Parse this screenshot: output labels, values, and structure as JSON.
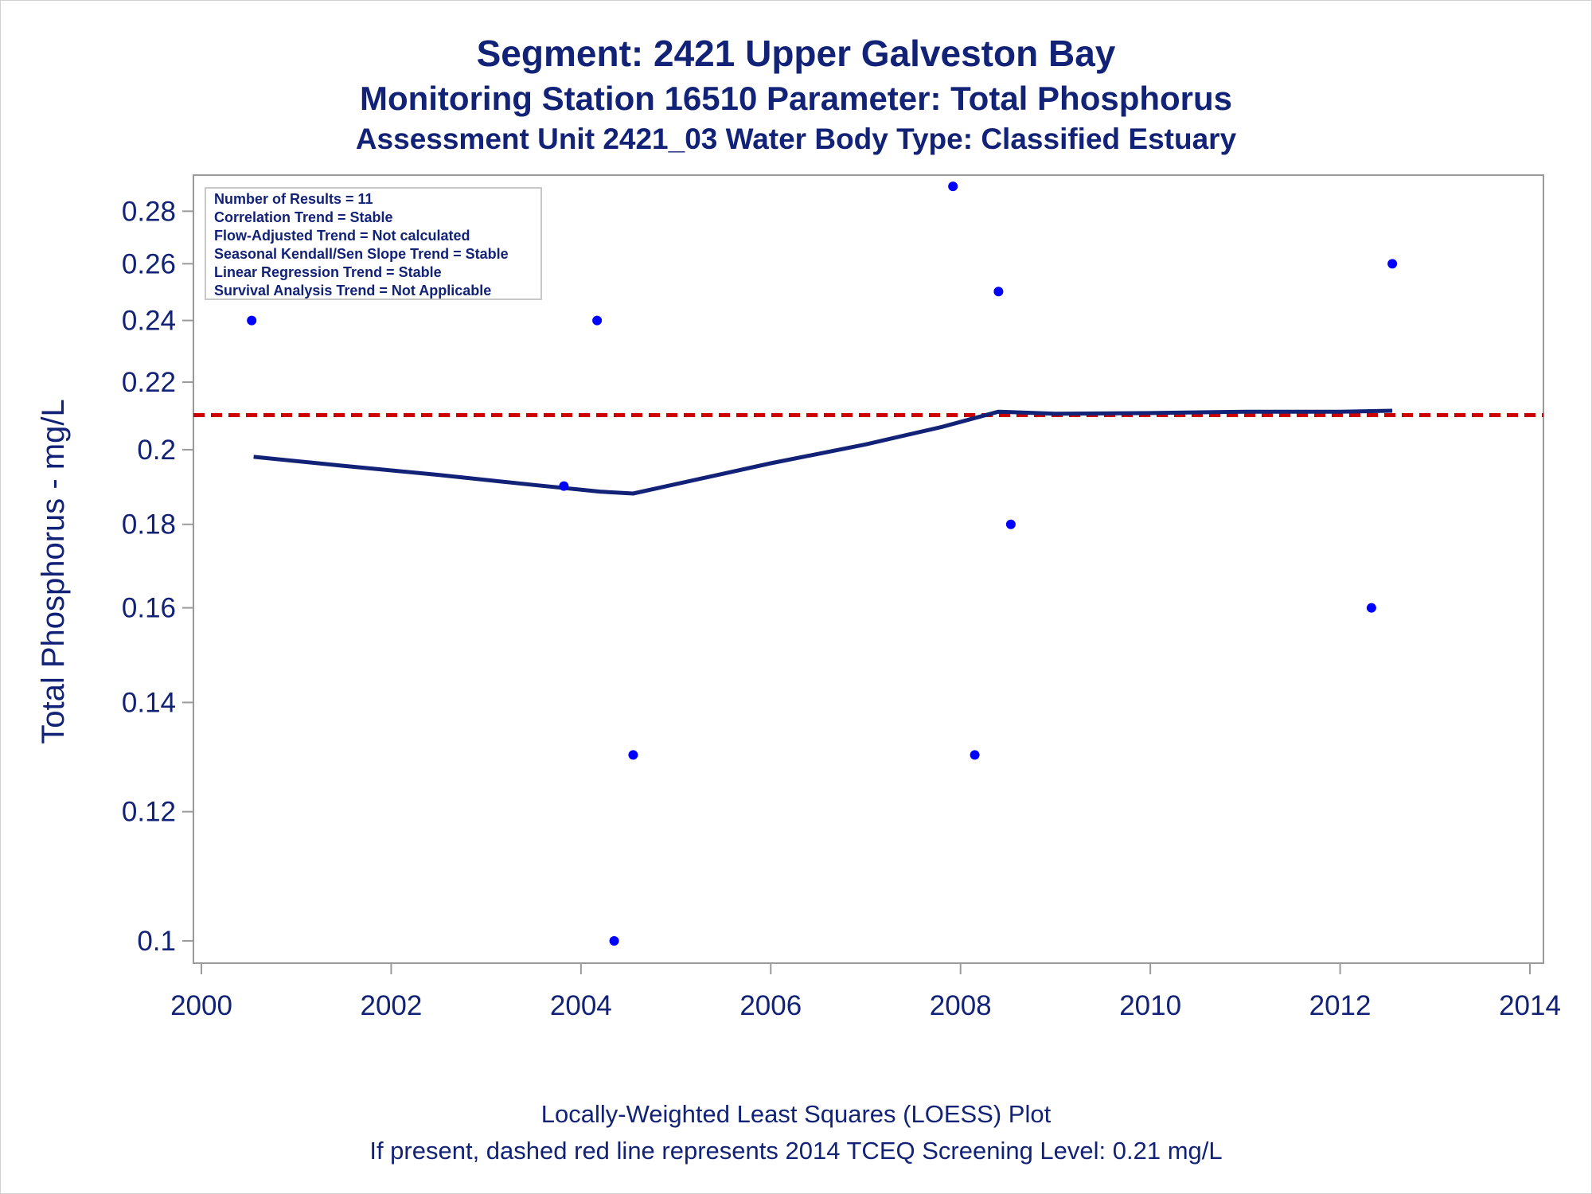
{
  "chart_data": {
    "type": "scatter",
    "title": "Segment: 2421  Upper Galveston Bay",
    "subtitle": "Monitoring Station 16510 Parameter: Total Phosphorus",
    "subtitle2": "Assessment Unit 2421_03   Water Body Type: Classified Estuary",
    "ylabel": "Total Phosphorus - mg/L",
    "xlabel": "",
    "footnote1": "Locally-Weighted Least Squares (LOESS) Plot",
    "footnote2": "If present, dashed red line represents 2014 TCEQ Screening Level: 0.21 mg/L",
    "y_scale": "log",
    "xlim": [
      2000,
      2014
    ],
    "ylim": [
      0.098,
      0.292
    ],
    "x_ticks": [
      2000,
      2002,
      2004,
      2006,
      2008,
      2010,
      2012,
      2014
    ],
    "x_tick_labels": [
      "2000",
      "2002",
      "2004",
      "2006",
      "2008",
      "2010",
      "2012",
      "2014"
    ],
    "y_ticks": [
      0.1,
      0.12,
      0.14,
      0.16,
      0.18,
      0.2,
      0.22,
      0.24,
      0.26,
      0.28
    ],
    "y_tick_labels": [
      "0.1",
      "0.12",
      "0.14",
      "0.16",
      "0.18",
      "0.2",
      "0.22",
      "0.24",
      "0.26",
      "0.28"
    ],
    "grid": false,
    "stats_box": [
      "Number of Results = 11",
      "Correlation Trend = Stable",
      "Flow-Adjusted Trend = Not calculated",
      "Seasonal Kendall/Sen Slope Trend = Stable",
      "Linear Regression Trend = Stable",
      "Survival Analysis Trend = Not Applicable"
    ],
    "stats_box_position": "top-left",
    "points": [
      {
        "x": 2000.53,
        "y": 0.24
      },
      {
        "x": 2003.82,
        "y": 0.19
      },
      {
        "x": 2004.17,
        "y": 0.24
      },
      {
        "x": 2004.35,
        "y": 0.1
      },
      {
        "x": 2004.55,
        "y": 0.13
      },
      {
        "x": 2007.92,
        "y": 0.29
      },
      {
        "x": 2008.15,
        "y": 0.13
      },
      {
        "x": 2008.4,
        "y": 0.25
      },
      {
        "x": 2008.53,
        "y": 0.18
      },
      {
        "x": 2012.33,
        "y": 0.16
      },
      {
        "x": 2012.55,
        "y": 0.26
      }
    ],
    "loess": [
      {
        "x": 2000.55,
        "y": 0.198
      },
      {
        "x": 2001.5,
        "y": 0.1955
      },
      {
        "x": 2002.5,
        "y": 0.193
      },
      {
        "x": 2003.5,
        "y": 0.1903
      },
      {
        "x": 2004.2,
        "y": 0.1885
      },
      {
        "x": 2004.55,
        "y": 0.188
      },
      {
        "x": 2005.0,
        "y": 0.1905
      },
      {
        "x": 2006.0,
        "y": 0.1962
      },
      {
        "x": 2007.0,
        "y": 0.2015
      },
      {
        "x": 2007.8,
        "y": 0.2065
      },
      {
        "x": 2008.2,
        "y": 0.2095
      },
      {
        "x": 2008.4,
        "y": 0.211
      },
      {
        "x": 2009.0,
        "y": 0.2104
      },
      {
        "x": 2010.0,
        "y": 0.2106
      },
      {
        "x": 2011.0,
        "y": 0.211
      },
      {
        "x": 2012.0,
        "y": 0.211
      },
      {
        "x": 2012.55,
        "y": 0.2113
      }
    ],
    "screening_level": 0.21,
    "colors": {
      "points": "#0000ff",
      "loess": "#112277",
      "screening": "#cc0000",
      "text": "#112277"
    }
  }
}
